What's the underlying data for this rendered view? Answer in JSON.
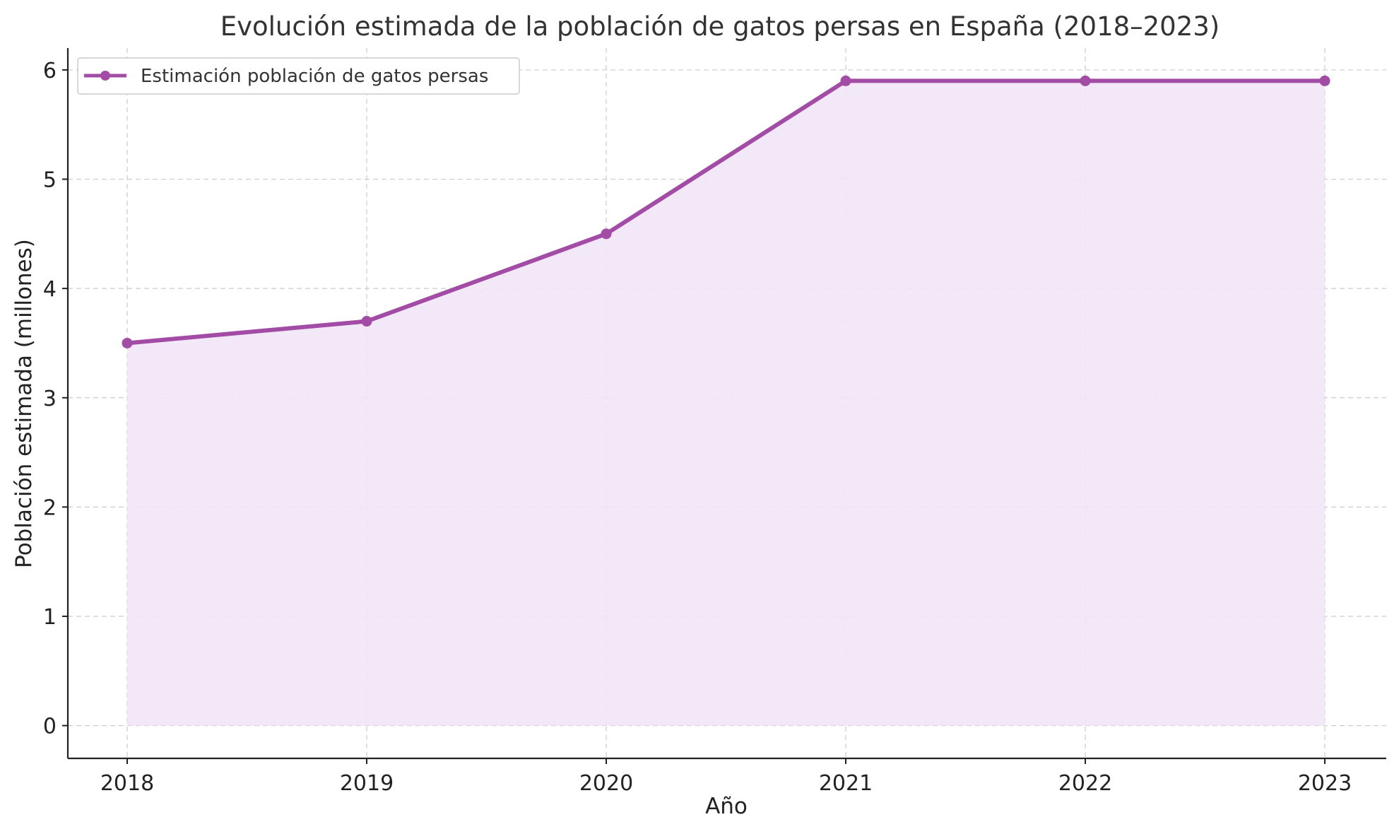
{
  "chart_data": {
    "type": "area",
    "title": "Evolución estimada de la población de gatos persas en España (2018–2023)",
    "xlabel": "Año",
    "ylabel": "Población estimada (millones)",
    "x": [
      "2018",
      "2019",
      "2020",
      "2021",
      "2022",
      "2023"
    ],
    "series": [
      {
        "name": "Estimación población de gatos persas",
        "values": [
          3.5,
          3.7,
          4.5,
          5.9,
          5.9,
          5.9
        ],
        "color": "#a24ca6",
        "fill": "#f1e6f7"
      }
    ],
    "ylim": [
      -0.3,
      6.2
    ],
    "yticks": [
      "0",
      "1",
      "2",
      "3",
      "4",
      "5",
      "6"
    ],
    "grid": true,
    "legend_position": "top-left"
  }
}
